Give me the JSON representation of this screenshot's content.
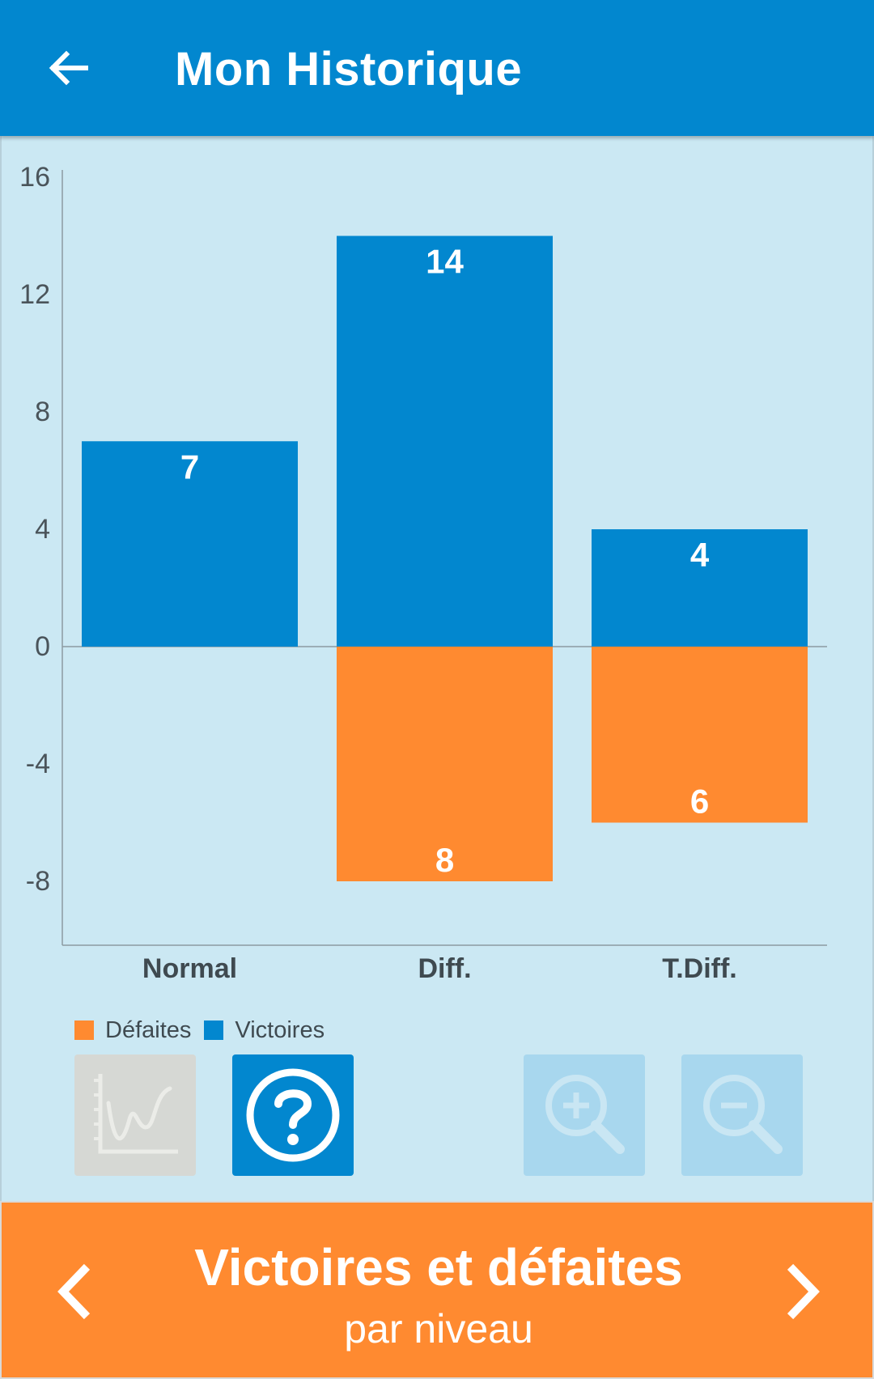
{
  "header": {
    "title": "Mon Historique",
    "back_icon": "arrow-left-icon"
  },
  "colors": {
    "primary": "#0287cf",
    "accent": "#ff8a30",
    "background": "#cbe8f3"
  },
  "chart_data": {
    "type": "bar",
    "categories": [
      "Normal",
      "Diff.",
      "T.Diff."
    ],
    "series": [
      {
        "name": "Victoires",
        "values": [
          7,
          14,
          4
        ],
        "color": "#0287cf"
      },
      {
        "name": "Défaites",
        "values": [
          0,
          -8,
          -6
        ],
        "color": "#ff8a30"
      }
    ],
    "data_labels": {
      "Victoires": [
        "7",
        "14",
        "4"
      ],
      "Défaites": [
        "",
        "8",
        "6"
      ]
    },
    "ylim": [
      -10,
      16
    ],
    "yticks": [
      16,
      12,
      8,
      4,
      0,
      -4,
      -8
    ],
    "ytick_labels": [
      "16",
      "12",
      "8",
      "4",
      "0",
      "-4",
      "-8"
    ],
    "stacked": true,
    "legend_position": "bottom-left"
  },
  "legend": {
    "items": [
      {
        "label": "Défaites",
        "color": "#ff8a30"
      },
      {
        "label": "Victoires",
        "color": "#0287cf"
      }
    ]
  },
  "toolbar": {
    "chart_type_icon": "line-chart-icon",
    "help_icon": "help-circle-icon",
    "zoom_in_icon": "zoom-in-icon",
    "zoom_out_icon": "zoom-out-icon"
  },
  "footer": {
    "title": "Victoires et défaites",
    "subtitle": "par niveau",
    "prev_icon": "chevron-left-icon",
    "next_icon": "chevron-right-icon"
  }
}
